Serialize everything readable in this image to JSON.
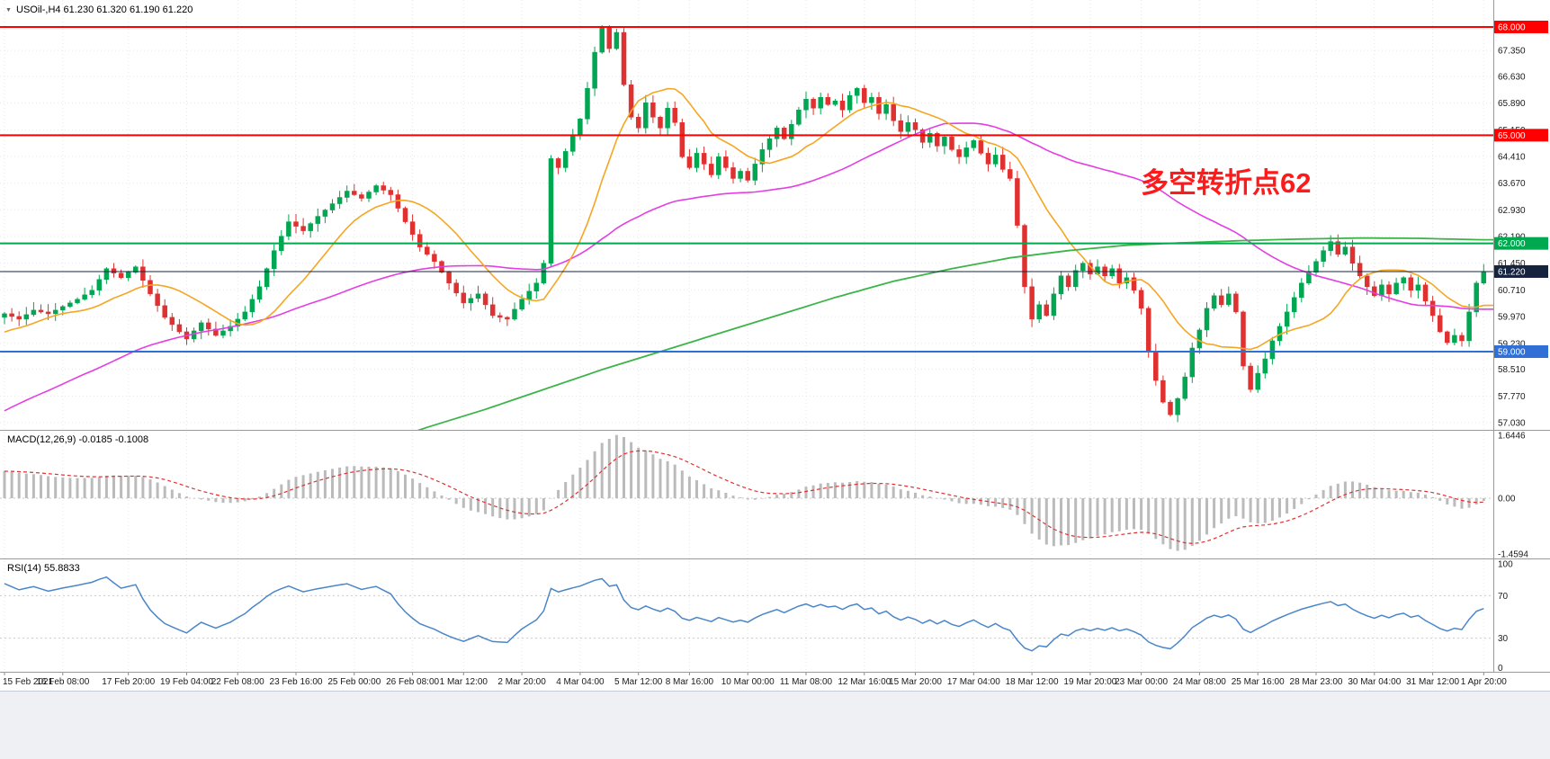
{
  "chart": {
    "collapse_icon": "▼",
    "symbol_label": "USOil-,H4 61.230 61.320 61.190 61.220",
    "annotation": "多空转折点62"
  },
  "macd_panel": {
    "label": "MACD(12,26,9) -0.0185 -0.1008"
  },
  "rsi_panel": {
    "label": "RSI(14) 55.8833"
  },
  "chart_data": {
    "type": "candlestick",
    "symbol": "USOil-",
    "timeframe": "H4",
    "quote": {
      "open": "61.230",
      "high": "61.320",
      "low": "61.190",
      "close": "61.220"
    },
    "bars": 204,
    "price_axis": {
      "ticks": [
        "67.350",
        "66.630",
        "65.890",
        "65.150",
        "64.410",
        "63.670",
        "62.930",
        "62.190",
        "61.450",
        "60.710",
        "59.970",
        "59.230",
        "58.510",
        "57.770",
        "57.030"
      ]
    },
    "time_axis": {
      "labels": [
        {
          "t": "15 Feb 2021",
          "bar": 0
        },
        {
          "t": "16 Feb 08:00",
          "bar": 8
        },
        {
          "t": "17 Feb 20:00",
          "bar": 17
        },
        {
          "t": "19 Feb 04:00",
          "bar": 25
        },
        {
          "t": "22 Feb 08:00",
          "bar": 32
        },
        {
          "t": "23 Feb 16:00",
          "bar": 40
        },
        {
          "t": "25 Feb 00:00",
          "bar": 48
        },
        {
          "t": "26 Feb 08:00",
          "bar": 56
        },
        {
          "t": "1 Mar 12:00",
          "bar": 63
        },
        {
          "t": "2 Mar 20:00",
          "bar": 71
        },
        {
          "t": "4 Mar 04:00",
          "bar": 79
        },
        {
          "t": "5 Mar 12:00",
          "bar": 87
        },
        {
          "t": "8 Mar 16:00",
          "bar": 94
        },
        {
          "t": "10 Mar 00:00",
          "bar": 102
        },
        {
          "t": "11 Mar 08:00",
          "bar": 110
        },
        {
          "t": "12 Mar 16:00",
          "bar": 118
        },
        {
          "t": "15 Mar 20:00",
          "bar": 125
        },
        {
          "t": "17 Mar 04:00",
          "bar": 133
        },
        {
          "t": "18 Mar 12:00",
          "bar": 141
        },
        {
          "t": "19 Mar 20:00",
          "bar": 149
        },
        {
          "t": "23 Mar 00:00",
          "bar": 156
        },
        {
          "t": "24 Mar 08:00",
          "bar": 164
        },
        {
          "t": "25 Mar 16:00",
          "bar": 172
        },
        {
          "t": "28 Mar 23:00",
          "bar": 180
        },
        {
          "t": "30 Mar 04:00",
          "bar": 188
        },
        {
          "t": "31 Mar 12:00",
          "bar": 196
        },
        {
          "t": "1 Apr 20:00",
          "bar": 203
        }
      ]
    },
    "hlines": [
      {
        "price": 68.0,
        "label": "68.000",
        "color": "#FE0000"
      },
      {
        "price": 65.0,
        "label": "65.000",
        "color": "#FE0000"
      },
      {
        "price": 62.0,
        "label": "62.000",
        "color": "#00A94F"
      },
      {
        "price": 59.0,
        "label": "59.000",
        "color": "#2F6FD6"
      }
    ],
    "current_price": {
      "value": 61.22,
      "label": "61.220",
      "color": "#16233F"
    },
    "close_waypoints": [
      [
        0,
        60.05
      ],
      [
        2,
        59.9
      ],
      [
        4,
        60.15
      ],
      [
        6,
        60.05
      ],
      [
        8,
        60.25
      ],
      [
        10,
        60.45
      ],
      [
        12,
        60.7
      ],
      [
        14,
        61.3
      ],
      [
        16,
        61.05
      ],
      [
        18,
        61.35
      ],
      [
        20,
        60.6
      ],
      [
        22,
        59.95
      ],
      [
        25,
        59.35
      ],
      [
        27,
        59.8
      ],
      [
        29,
        59.45
      ],
      [
        31,
        59.7
      ],
      [
        33,
        60.1
      ],
      [
        35,
        60.8
      ],
      [
        37,
        61.8
      ],
      [
        39,
        62.6
      ],
      [
        41,
        62.35
      ],
      [
        43,
        62.75
      ],
      [
        45,
        63.1
      ],
      [
        47,
        63.45
      ],
      [
        49,
        63.25
      ],
      [
        51,
        63.6
      ],
      [
        53,
        63.35
      ],
      [
        55,
        62.6
      ],
      [
        57,
        61.9
      ],
      [
        59,
        61.5
      ],
      [
        61,
        60.9
      ],
      [
        63,
        60.35
      ],
      [
        65,
        60.6
      ],
      [
        67,
        60.0
      ],
      [
        69,
        59.9
      ],
      [
        71,
        60.45
      ],
      [
        73,
        60.9
      ],
      [
        74,
        61.45
      ],
      [
        75,
        64.35
      ],
      [
        76,
        64.1
      ],
      [
        77,
        64.55
      ],
      [
        78,
        65.0
      ],
      [
        79,
        65.45
      ],
      [
        80,
        66.3
      ],
      [
        81,
        67.3
      ],
      [
        82,
        68.0
      ],
      [
        83,
        67.4
      ],
      [
        84,
        67.85
      ],
      [
        85,
        66.4
      ],
      [
        86,
        65.5
      ],
      [
        87,
        65.2
      ],
      [
        88,
        65.9
      ],
      [
        89,
        65.5
      ],
      [
        90,
        65.2
      ],
      [
        91,
        65.75
      ],
      [
        92,
        65.35
      ],
      [
        93,
        64.4
      ],
      [
        94,
        64.1
      ],
      [
        95,
        64.5
      ],
      [
        96,
        64.2
      ],
      [
        97,
        63.9
      ],
      [
        98,
        64.4
      ],
      [
        99,
        64.1
      ],
      [
        100,
        63.8
      ],
      [
        101,
        64.0
      ],
      [
        102,
        63.75
      ],
      [
        103,
        64.2
      ],
      [
        104,
        64.6
      ],
      [
        105,
        64.9
      ],
      [
        106,
        65.2
      ],
      [
        107,
        64.9
      ],
      [
        108,
        65.3
      ],
      [
        109,
        65.7
      ],
      [
        110,
        66.0
      ],
      [
        111,
        65.75
      ],
      [
        112,
        66.05
      ],
      [
        113,
        65.85
      ],
      [
        114,
        65.95
      ],
      [
        115,
        65.7
      ],
      [
        116,
        66.1
      ],
      [
        117,
        66.3
      ],
      [
        118,
        65.9
      ],
      [
        119,
        66.05
      ],
      [
        120,
        65.6
      ],
      [
        121,
        65.85
      ],
      [
        122,
        65.4
      ],
      [
        123,
        65.1
      ],
      [
        124,
        65.35
      ],
      [
        125,
        65.15
      ],
      [
        126,
        64.8
      ],
      [
        127,
        65.05
      ],
      [
        128,
        64.7
      ],
      [
        129,
        64.95
      ],
      [
        130,
        64.6
      ],
      [
        131,
        64.4
      ],
      [
        132,
        64.65
      ],
      [
        133,
        64.85
      ],
      [
        134,
        64.5
      ],
      [
        135,
        64.2
      ],
      [
        136,
        64.45
      ],
      [
        137,
        64.05
      ],
      [
        138,
        63.8
      ],
      [
        139,
        62.5
      ],
      [
        140,
        60.8
      ],
      [
        141,
        59.9
      ],
      [
        142,
        60.3
      ],
      [
        143,
        60.0
      ],
      [
        144,
        60.6
      ],
      [
        145,
        61.1
      ],
      [
        146,
        60.8
      ],
      [
        147,
        61.25
      ],
      [
        148,
        61.45
      ],
      [
        149,
        61.15
      ],
      [
        150,
        61.35
      ],
      [
        151,
        61.1
      ],
      [
        152,
        61.3
      ],
      [
        153,
        60.9
      ],
      [
        154,
        61.05
      ],
      [
        155,
        60.7
      ],
      [
        156,
        60.2
      ],
      [
        157,
        59.0
      ],
      [
        158,
        58.2
      ],
      [
        159,
        57.6
      ],
      [
        160,
        57.25
      ],
      [
        161,
        57.7
      ],
      [
        162,
        58.3
      ],
      [
        163,
        59.1
      ],
      [
        164,
        59.6
      ],
      [
        165,
        60.2
      ],
      [
        166,
        60.55
      ],
      [
        167,
        60.3
      ],
      [
        168,
        60.6
      ],
      [
        169,
        60.1
      ],
      [
        170,
        58.6
      ],
      [
        171,
        57.95
      ],
      [
        172,
        58.4
      ],
      [
        173,
        58.8
      ],
      [
        174,
        59.3
      ],
      [
        175,
        59.7
      ],
      [
        176,
        60.1
      ],
      [
        177,
        60.5
      ],
      [
        178,
        60.9
      ],
      [
        179,
        61.2
      ],
      [
        180,
        61.5
      ],
      [
        181,
        61.8
      ],
      [
        182,
        62.05
      ],
      [
        183,
        61.7
      ],
      [
        184,
        61.9
      ],
      [
        185,
        61.45
      ],
      [
        186,
        61.1
      ],
      [
        187,
        60.8
      ],
      [
        188,
        60.55
      ],
      [
        189,
        60.85
      ],
      [
        190,
        60.6
      ],
      [
        191,
        60.9
      ],
      [
        192,
        61.05
      ],
      [
        193,
        60.7
      ],
      [
        194,
        60.85
      ],
      [
        195,
        60.4
      ],
      [
        196,
        60.0
      ],
      [
        197,
        59.55
      ],
      [
        198,
        59.25
      ],
      [
        199,
        59.45
      ],
      [
        200,
        59.3
      ],
      [
        201,
        60.1
      ],
      [
        202,
        60.9
      ],
      [
        203,
        61.22
      ]
    ],
    "ma_green_waypoints": [
      [
        50,
        56.35
      ],
      [
        58,
        56.9
      ],
      [
        66,
        57.4
      ],
      [
        74,
        57.95
      ],
      [
        82,
        58.5
      ],
      [
        90,
        59.0
      ],
      [
        98,
        59.5
      ],
      [
        106,
        60.0
      ],
      [
        114,
        60.5
      ],
      [
        122,
        60.95
      ],
      [
        130,
        61.3
      ],
      [
        138,
        61.6
      ],
      [
        146,
        61.8
      ],
      [
        154,
        61.95
      ],
      [
        162,
        62.02
      ],
      [
        170,
        62.08
      ],
      [
        178,
        62.12
      ],
      [
        186,
        62.15
      ],
      [
        194,
        62.14
      ],
      [
        203,
        62.1
      ]
    ],
    "moving_averages": {
      "fast_period": 13,
      "slow_period": 55
    },
    "macd": {
      "params": [
        12,
        26,
        9
      ],
      "value": -0.0185,
      "signal_value": -0.1008,
      "axis": [
        "1.6446",
        "0.00",
        "-1.4594"
      ],
      "range": [
        -1.4594,
        1.6446
      ]
    },
    "rsi": {
      "period": 14,
      "value": 55.8833,
      "axis": [
        "100",
        "70",
        "30",
        "0"
      ],
      "levels": [
        70,
        30
      ]
    },
    "colors": {
      "up": "#00A651",
      "down": "#E03131",
      "ma_fast": "#F5A623",
      "ma_slow": "#E33FE3",
      "ma_long": "#3CB44A",
      "macd_hist": "#BBBBBB",
      "macd_signal": "#E03131",
      "rsi": "#4A86C8",
      "annotation": "#FE1A1A"
    }
  }
}
